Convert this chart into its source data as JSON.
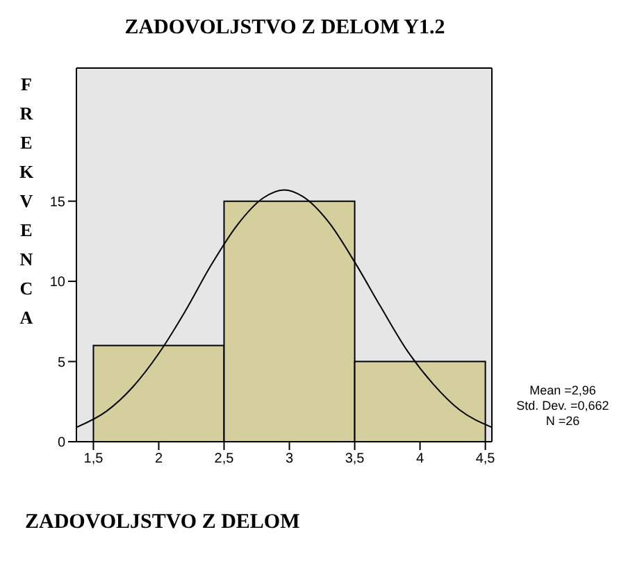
{
  "chart_data": {
    "type": "histogram",
    "title": "ZADOVOLJSTVO Z DELOM Y1.2",
    "xlabel": "ZADOVOLJSTVO Z DELOM",
    "ylabel": "FREKVENCA",
    "series": [
      {
        "type": "histogram",
        "bins": [
          1.5,
          2.5,
          3.5,
          4.5
        ],
        "values": [
          6,
          15,
          5
        ],
        "color": "#d4cf9c"
      },
      {
        "type": "line",
        "x": [
          1.37,
          1.6,
          1.8,
          2.0,
          2.2,
          2.4,
          2.6,
          2.8,
          2.96,
          3.1,
          3.3,
          3.5,
          3.7,
          3.9,
          4.1,
          4.3,
          4.55
        ],
        "values": [
          0.9,
          1.9,
          3.4,
          5.5,
          8.1,
          11.0,
          13.5,
          15.2,
          15.7,
          15.3,
          13.7,
          11.2,
          8.4,
          5.7,
          3.6,
          2.0,
          0.9
        ],
        "color": "#000000"
      }
    ],
    "xlim": [
      1.37,
      4.55
    ],
    "xticks": [
      {
        "value": 1.5,
        "label": "1,5"
      },
      2,
      {
        "value": 2.5,
        "label": "2,5"
      },
      3,
      {
        "value": 3.5,
        "label": "3,5"
      },
      4,
      {
        "value": 4.5,
        "label": "4,5"
      }
    ],
    "ylim": [
      0,
      23.3
    ],
    "yticks": [
      0,
      5,
      10,
      15
    ],
    "grid": false,
    "marker": "none",
    "annotations": [
      "Mean =2,96",
      "Std. Dev. =0,662",
      "N =26"
    ]
  }
}
